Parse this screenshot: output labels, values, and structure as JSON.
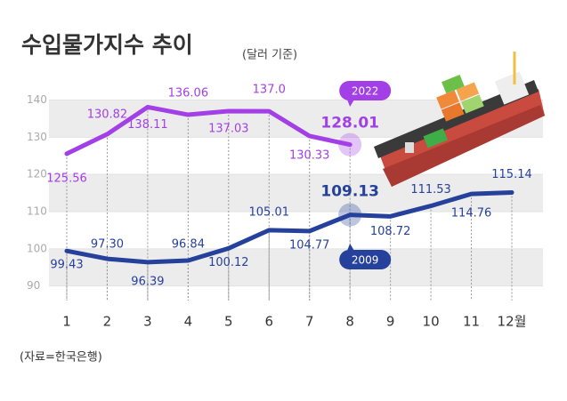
{
  "chart_data": {
    "type": "line",
    "title": "수입물가지수 추이",
    "subtitle": "(달러 기준)",
    "source": "(자료=한국은행)",
    "categories": [
      "1",
      "2",
      "3",
      "4",
      "5",
      "6",
      "7",
      "8",
      "9",
      "10",
      "11",
      "12월"
    ],
    "series": [
      {
        "name": "2022",
        "color": "#a23fe6",
        "values": [
          125.56,
          130.82,
          138.11,
          136.06,
          137.03,
          137.0,
          130.33,
          128.01,
          null,
          null,
          null,
          null
        ],
        "value_labels": [
          "125.56",
          "130.82",
          "138.11",
          "136.06",
          "137.03",
          "137.0",
          "130.33",
          "128.01",
          null,
          null,
          null,
          null
        ]
      },
      {
        "name": "2009",
        "color": "#26419c",
        "values": [
          99.43,
          97.3,
          96.39,
          96.84,
          100.12,
          105.01,
          104.77,
          109.13,
          108.72,
          111.53,
          114.76,
          115.14
        ],
        "value_labels": [
          "99.43",
          "97.30",
          "96.39",
          "96.84",
          "100.12",
          "105.01",
          "104.77",
          "109.13",
          "108.72",
          "111.53",
          "114.76",
          "115.14"
        ]
      }
    ],
    "ylim": [
      88,
      143
    ],
    "yticks": [
      90,
      100,
      110,
      120,
      130,
      140
    ],
    "grid": true
  }
}
